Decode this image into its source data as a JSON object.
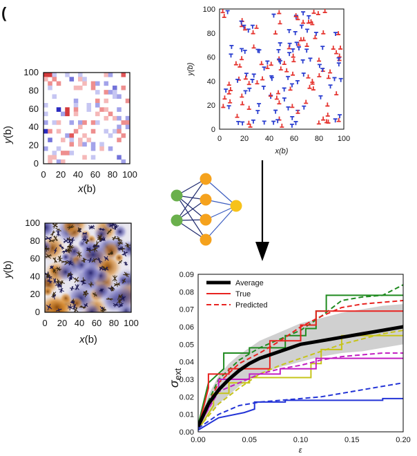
{
  "panel_label": "(",
  "panels": {
    "hm_map": {
      "xlabel_var": "x",
      "xlabel_unit": "(b)",
      "ylabel_var": "y",
      "ylabel_unit": "(b)",
      "xticks": [
        "0",
        "20",
        "40",
        "60",
        "80",
        "100"
      ],
      "yticks": [
        "0",
        "20",
        "40",
        "60",
        "80",
        "100"
      ]
    },
    "dislocations": {
      "xlabel": "x(b)",
      "ylabel": "y(b)",
      "xticks": [
        "0",
        "20",
        "40",
        "60",
        "80",
        "100"
      ],
      "yticks": [
        "0",
        "20",
        "40",
        "60",
        "80",
        "100"
      ]
    },
    "stress_field": {
      "xlabel_var": "x",
      "xlabel_unit": "(b)",
      "ylabel_var": "y",
      "ylabel_unit": "(b)",
      "xticks": [
        "0",
        "20",
        "40",
        "60",
        "80",
        "100"
      ],
      "yticks": [
        "0",
        "20",
        "40",
        "60",
        "80",
        "100"
      ]
    }
  },
  "colors": {
    "red": "#e5342f",
    "blue": "#2b3fd0",
    "node_green": "#6ab04c",
    "node_orange": "#f5a21d",
    "node_yellow": "#f7c21a",
    "edge": "#1f2a6e",
    "black": "#000000",
    "grey_band": "#c8c8c8",
    "series_green": "#1f8a1f",
    "series_red": "#e8221f",
    "series_magenta": "#c21fc2",
    "series_yellow": "#c6c41a",
    "series_blue": "#2233d6"
  },
  "chart_data": {
    "type": "line",
    "title": "",
    "xlabel": "ε",
    "ylabel": "σ",
    "ylabel_sub": "ext",
    "xlim": [
      0,
      0.2
    ],
    "ylim": [
      0,
      0.09
    ],
    "xticks": [
      "0.00",
      "0.05",
      "0.10",
      "0.15",
      "0.20"
    ],
    "yticks": [
      "0.00",
      "0.01",
      "0.02",
      "0.03",
      "0.04",
      "0.05",
      "0.06",
      "0.07",
      "0.08",
      "0.09"
    ],
    "legend": [
      "Average",
      "True",
      "Predicted"
    ],
    "average": {
      "name": "Average",
      "x": [
        0,
        0.01,
        0.02,
        0.03,
        0.04,
        0.05,
        0.06,
        0.08,
        0.1,
        0.12,
        0.14,
        0.16,
        0.18,
        0.2
      ],
      "y": [
        0.003,
        0.016,
        0.024,
        0.03,
        0.035,
        0.039,
        0.042,
        0.046,
        0.05,
        0.052,
        0.054,
        0.056,
        0.058,
        0.06
      ],
      "band_low": [
        0.002,
        0.01,
        0.016,
        0.021,
        0.026,
        0.03,
        0.033,
        0.037,
        0.04,
        0.043,
        0.045,
        0.046,
        0.048,
        0.05
      ],
      "band_high": [
        0.004,
        0.021,
        0.032,
        0.039,
        0.044,
        0.048,
        0.052,
        0.057,
        0.062,
        0.065,
        0.068,
        0.07,
        0.072,
        0.073
      ]
    },
    "series": [
      {
        "name": "green",
        "true_x": [
          0,
          0.005,
          0.01,
          0.025,
          0.025,
          0.05,
          0.05,
          0.085,
          0.085,
          0.105,
          0.105,
          0.115,
          0.115,
          0.125,
          0.125,
          0.2
        ],
        "true_y": [
          0.004,
          0.016,
          0.028,
          0.036,
          0.045,
          0.045,
          0.048,
          0.048,
          0.055,
          0.055,
          0.059,
          0.059,
          0.069,
          0.069,
          0.078,
          0.078
        ],
        "pred_x": [
          0,
          0.02,
          0.04,
          0.06,
          0.08,
          0.1,
          0.12,
          0.14,
          0.16,
          0.18,
          0.2
        ],
        "pred_y": [
          0.005,
          0.03,
          0.041,
          0.048,
          0.053,
          0.058,
          0.066,
          0.075,
          0.077,
          0.078,
          0.084
        ]
      },
      {
        "name": "red",
        "true_x": [
          0,
          0.01,
          0.01,
          0.03,
          0.03,
          0.07,
          0.07,
          0.1,
          0.1,
          0.115,
          0.115,
          0.2
        ],
        "true_y": [
          0.002,
          0.025,
          0.033,
          0.033,
          0.036,
          0.036,
          0.052,
          0.052,
          0.061,
          0.061,
          0.069,
          0.069
        ],
        "pred_x": [
          0,
          0.02,
          0.04,
          0.06,
          0.08,
          0.1,
          0.12,
          0.14,
          0.16,
          0.18,
          0.2
        ],
        "pred_y": [
          0.004,
          0.028,
          0.039,
          0.045,
          0.052,
          0.06,
          0.066,
          0.071,
          0.073,
          0.074,
          0.075
        ]
      },
      {
        "name": "yellow",
        "true_x": [
          0,
          0.015,
          0.015,
          0.03,
          0.03,
          0.05,
          0.05,
          0.11,
          0.11,
          0.12,
          0.12,
          0.14,
          0.14,
          0.2
        ],
        "true_y": [
          0.001,
          0.015,
          0.022,
          0.022,
          0.028,
          0.028,
          0.031,
          0.031,
          0.039,
          0.039,
          0.047,
          0.047,
          0.055,
          0.055
        ],
        "pred_x": [
          0,
          0.02,
          0.04,
          0.06,
          0.08,
          0.1,
          0.12,
          0.14,
          0.16,
          0.18,
          0.2
        ],
        "pred_y": [
          0.002,
          0.016,
          0.025,
          0.033,
          0.038,
          0.042,
          0.046,
          0.05,
          0.053,
          0.056,
          0.058
        ]
      },
      {
        "name": "magenta",
        "true_x": [
          0,
          0.02,
          0.02,
          0.05,
          0.05,
          0.08,
          0.08,
          0.115,
          0.115,
          0.2
        ],
        "true_y": [
          0.002,
          0.025,
          0.03,
          0.03,
          0.033,
          0.033,
          0.036,
          0.036,
          0.042,
          0.042
        ],
        "pred_x": [
          0,
          0.02,
          0.04,
          0.06,
          0.08,
          0.1,
          0.12,
          0.14,
          0.16,
          0.18,
          0.2
        ],
        "pred_y": [
          0.003,
          0.023,
          0.028,
          0.033,
          0.036,
          0.038,
          0.041,
          0.043,
          0.044,
          0.045,
          0.045
        ]
      },
      {
        "name": "blue",
        "true_x": [
          0,
          0.02,
          0.045,
          0.055,
          0.055,
          0.085,
          0.085,
          0.18,
          0.18,
          0.2
        ],
        "true_y": [
          0.001,
          0.008,
          0.011,
          0.013,
          0.017,
          0.017,
          0.018,
          0.018,
          0.019,
          0.019
        ],
        "pred_x": [
          0,
          0.02,
          0.04,
          0.06,
          0.08,
          0.1,
          0.12,
          0.14,
          0.16,
          0.18,
          0.2
        ],
        "pred_y": [
          0.002,
          0.01,
          0.015,
          0.017,
          0.018,
          0.019,
          0.02,
          0.022,
          0.024,
          0.026,
          0.028
        ]
      }
    ]
  }
}
